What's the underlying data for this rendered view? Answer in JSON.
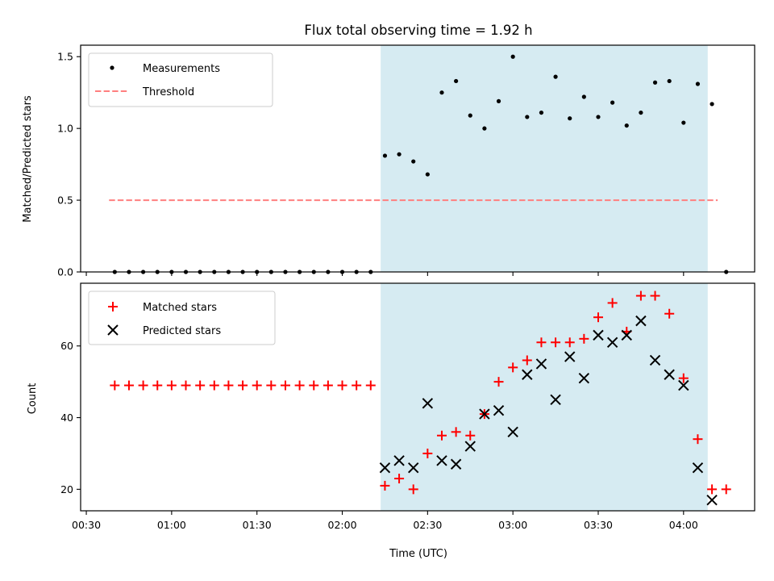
{
  "chart_data": [
    {
      "type": "scatter",
      "title": "Flux total observing time = 1.92 h",
      "xlabel": "",
      "ylabel": "Matched/Predicted stars",
      "xlim_minutes": [
        28,
        265
      ],
      "ylim": [
        0,
        1.58
      ],
      "yticks": [
        0.0,
        0.5,
        1.0,
        1.5
      ],
      "ytick_labels": [
        "0.0",
        "0.5",
        "1.0",
        "1.5"
      ],
      "shaded_span_minutes": [
        133.5,
        248.5
      ],
      "shade_color": "#add8e6",
      "legend_position": "upper-left",
      "legend": [
        {
          "key": "measurements",
          "label": "Measurements"
        },
        {
          "key": "threshold",
          "label": "Threshold"
        }
      ],
      "series": [
        {
          "name": "Measurements",
          "marker": "dot",
          "color": "#000000",
          "x_minutes": [
            40,
            45,
            50,
            55,
            60,
            65,
            70,
            75,
            80,
            85,
            90,
            95,
            100,
            105,
            110,
            115,
            120,
            125,
            130,
            135,
            140,
            145,
            150,
            155,
            160,
            165,
            170,
            175,
            180,
            185,
            190,
            195,
            200,
            205,
            210,
            215,
            220,
            225,
            230,
            235,
            240,
            245,
            250,
            255
          ],
          "values": [
            0,
            0,
            0,
            0,
            0,
            0,
            0,
            0,
            0,
            0,
            0,
            0,
            0,
            0,
            0,
            0,
            0,
            0,
            0,
            0.81,
            0.82,
            0.77,
            0.68,
            1.25,
            1.33,
            1.09,
            1.0,
            1.19,
            1.5,
            1.08,
            1.11,
            1.36,
            1.07,
            1.22,
            1.08,
            1.18,
            1.02,
            1.11,
            1.32,
            1.33,
            1.04,
            1.31,
            1.17,
            0
          ]
        },
        {
          "name": "Threshold",
          "style": "dashed",
          "color": "#ff7f7f",
          "x_minutes": [
            38,
            252
          ],
          "values": [
            0.5,
            0.5
          ]
        }
      ]
    },
    {
      "type": "scatter",
      "title": "",
      "xlabel": "Time (UTC)",
      "ylabel": "Count",
      "xlim_minutes": [
        28,
        265
      ],
      "ylim": [
        14,
        77.5
      ],
      "yticks": [
        20,
        40,
        60
      ],
      "ytick_labels": [
        "20",
        "40",
        "60"
      ],
      "xticks_minutes": [
        30,
        60,
        90,
        120,
        150,
        180,
        210,
        240
      ],
      "xtick_labels": [
        "00:30",
        "01:00",
        "01:30",
        "02:00",
        "02:30",
        "03:00",
        "03:30",
        "04:00"
      ],
      "shaded_span_minutes": [
        133.5,
        248.5
      ],
      "shade_color": "#add8e6",
      "legend_position": "upper-left",
      "legend": [
        {
          "key": "matched",
          "label": "Matched stars"
        },
        {
          "key": "predicted",
          "label": "Predicted stars"
        }
      ],
      "series": [
        {
          "name": "Matched stars",
          "marker": "plus",
          "color": "#ff0000",
          "x_minutes": [
            40,
            45,
            50,
            55,
            60,
            65,
            70,
            75,
            80,
            85,
            90,
            95,
            100,
            105,
            110,
            115,
            120,
            125,
            130,
            135,
            140,
            145,
            150,
            155,
            160,
            165,
            170,
            175,
            180,
            185,
            190,
            195,
            200,
            205,
            210,
            215,
            220,
            225,
            230,
            235,
            240,
            245,
            250,
            255
          ],
          "values": [
            49,
            49,
            49,
            49,
            49,
            49,
            49,
            49,
            49,
            49,
            49,
            49,
            49,
            49,
            49,
            49,
            49,
            49,
            49,
            21,
            23,
            20,
            30,
            35,
            36,
            35,
            41,
            50,
            54,
            56,
            61,
            61,
            61,
            62,
            68,
            72,
            64,
            74,
            74,
            69,
            51,
            34,
            20,
            20
          ]
        },
        {
          "name": "Predicted stars",
          "marker": "x",
          "color": "#000000",
          "x_minutes": [
            135,
            140,
            145,
            150,
            155,
            160,
            165,
            170,
            175,
            180,
            185,
            190,
            195,
            200,
            205,
            210,
            215,
            220,
            225,
            230,
            235,
            240,
            245,
            250
          ],
          "values": [
            26,
            28,
            26,
            44,
            28,
            27,
            32,
            41,
            42,
            36,
            52,
            55,
            45,
            57,
            51,
            63,
            61,
            63,
            67,
            56,
            52,
            49,
            26,
            17
          ]
        }
      ]
    }
  ]
}
